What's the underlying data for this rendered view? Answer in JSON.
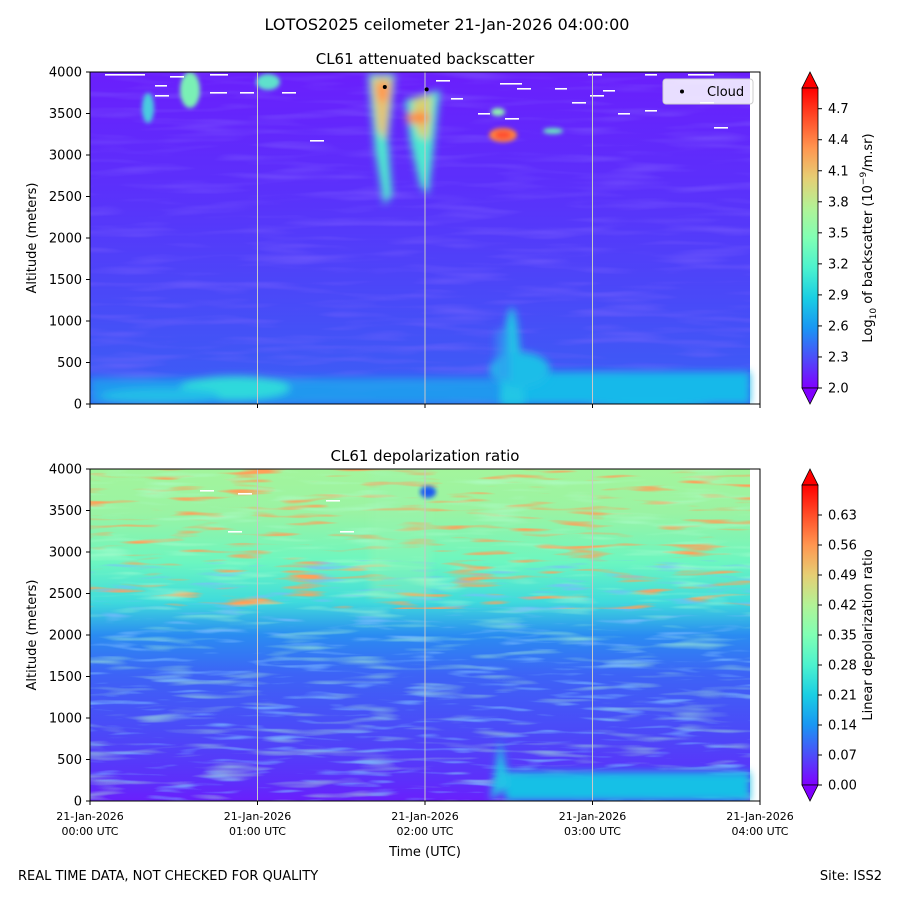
{
  "suptitle": "LOTOS2025 ceilometer 21-Jan-2026 04:00:00",
  "footer": {
    "left": "REAL TIME DATA, NOT CHECKED FOR QUALITY",
    "right": "Site: ISS2"
  },
  "x_axis": {
    "label": "Time (UTC)",
    "ticks": [
      {
        "date": "21-Jan-2026",
        "time": "00:00 UTC",
        "hours": 0
      },
      {
        "date": "21-Jan-2026",
        "time": "01:00 UTC",
        "hours": 1
      },
      {
        "date": "21-Jan-2026",
        "time": "02:00 UTC",
        "hours": 2
      },
      {
        "date": "21-Jan-2026",
        "time": "03:00 UTC",
        "hours": 3
      },
      {
        "date": "21-Jan-2026",
        "time": "04:00 UTC",
        "hours": 4
      }
    ]
  },
  "chart_data": [
    {
      "type": "heatmap",
      "title": "CL61 attenuated backscatter",
      "xlabel": "",
      "ylabel": "Altitude (meters)",
      "xlim_hours": [
        0,
        4
      ],
      "ylim": [
        0,
        4000
      ],
      "yticks": [
        0,
        500,
        1000,
        1500,
        2000,
        2500,
        3000,
        3500,
        4000
      ],
      "colorbar": {
        "label": "Log10 of backscatter (10^-9/m.sr)",
        "label_main": "Log",
        "label_sub": "10",
        "label_mid": " of backscatter (10",
        "label_sup": "−9",
        "label_end": "/m.sr)",
        "range": [
          2.0,
          4.9
        ],
        "ticks": [
          "2.0",
          "2.3",
          "2.6",
          "2.9",
          "3.2",
          "3.5",
          "3.8",
          "4.1",
          "4.4",
          "4.7"
        ],
        "colormap": "rainbow",
        "extend": "both"
      },
      "legend": {
        "label": "Cloud",
        "marker": "black dot",
        "placement": "top-right"
      },
      "cloud_points": [
        {
          "hours": 1.76,
          "altitude": 3820
        },
        {
          "hours": 2.01,
          "altitude": 3790
        }
      ],
      "vertical_gridlines_hours": [
        1,
        2,
        3
      ],
      "features": [
        {
          "name": "surface aerosol layer",
          "hours": [
            0.0,
            3.95
          ],
          "altitude": [
            0,
            300
          ],
          "value": 2.85
        },
        {
          "name": "plume after 02:30",
          "hours": [
            2.4,
            2.6
          ],
          "altitude": [
            0,
            1300
          ],
          "value": 2.9
        },
        {
          "name": "cloud streak",
          "hours": [
            1.65,
            2.1
          ],
          "altitude": [
            2400,
            4000
          ],
          "value": 4.3
        },
        {
          "name": "cloud patch",
          "hours": [
            2.4,
            2.6
          ],
          "altitude": [
            3150,
            3300
          ],
          "value": 4.6
        }
      ]
    },
    {
      "type": "heatmap",
      "title": "CL61 depolarization ratio",
      "xlabel": "Time (UTC)",
      "ylabel": "Altitude (meters)",
      "xlim_hours": [
        0,
        4
      ],
      "ylim": [
        0,
        4000
      ],
      "yticks": [
        0,
        500,
        1000,
        1500,
        2000,
        2500,
        3000,
        3500,
        4000
      ],
      "colorbar": {
        "label": "Linear depolarization ratio",
        "range": [
          0.0,
          0.7
        ],
        "ticks": [
          "0.00",
          "0.07",
          "0.14",
          "0.21",
          "0.28",
          "0.35",
          "0.42",
          "0.49",
          "0.56",
          "0.63"
        ],
        "colormap": "rainbow",
        "extend": "both"
      },
      "vertical_gridlines_hours": [
        1,
        2,
        3
      ],
      "features": [
        {
          "name": "low depolarization boundary layer",
          "altitude": [
            0,
            2000
          ],
          "value": 0.08
        },
        {
          "name": "noisy upper layer",
          "altitude": [
            2500,
            4000
          ],
          "value": 0.45
        },
        {
          "name": "plume after 02:30",
          "hours": [
            2.45,
            3.95
          ],
          "altitude": [
            0,
            300
          ],
          "value": 0.18
        }
      ]
    }
  ]
}
